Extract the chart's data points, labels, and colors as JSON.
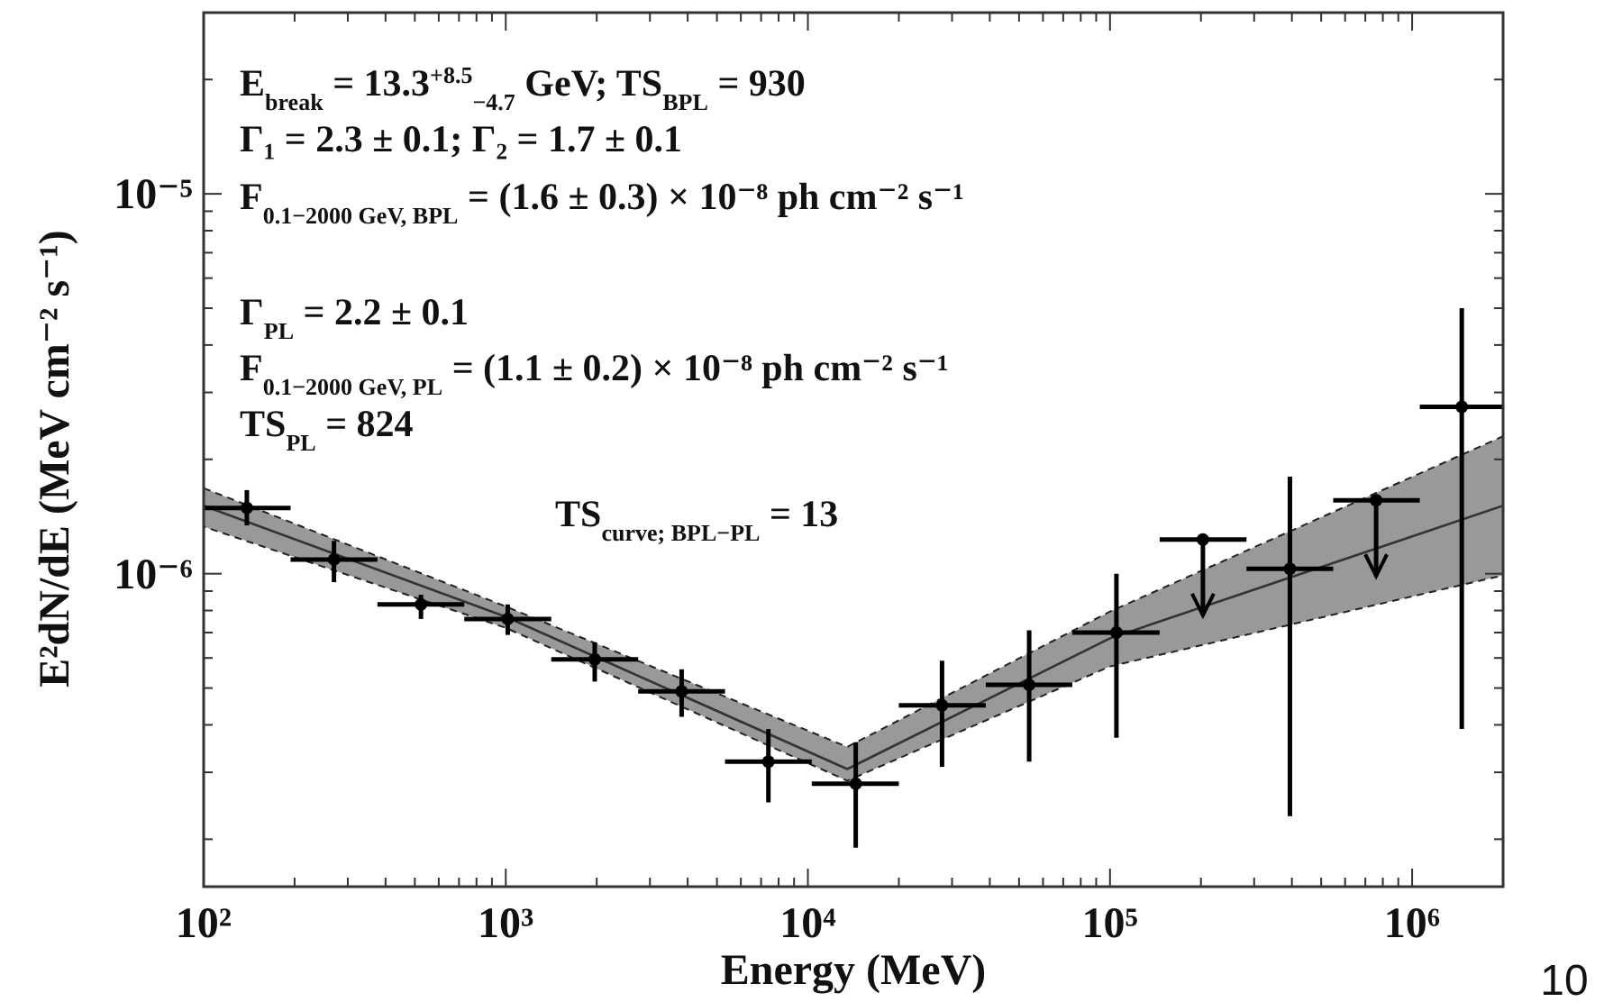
{
  "chart_data": {
    "type": "scatter",
    "xlabel": "Energy (MeV)",
    "ylabel": "E²dN/dE (MeV cm⁻² s⁻¹)",
    "log": "xy",
    "grid": false,
    "xlim": [
      100,
      2000000
    ],
    "ylim": [
      1.5e-07,
      3e-05
    ],
    "xticks": [
      {
        "value": 100,
        "label": "10²"
      },
      {
        "value": 200,
        "label": null
      },
      {
        "value": 300,
        "label": null
      },
      {
        "value": 400,
        "label": null
      },
      {
        "value": 500,
        "label": null
      },
      {
        "value": 600,
        "label": null
      },
      {
        "value": 700,
        "label": null
      },
      {
        "value": 800,
        "label": null
      },
      {
        "value": 900,
        "label": null
      },
      {
        "value": 1000,
        "label": "10³"
      },
      {
        "value": 2000,
        "label": null
      },
      {
        "value": 3000,
        "label": null
      },
      {
        "value": 4000,
        "label": null
      },
      {
        "value": 5000,
        "label": null
      },
      {
        "value": 6000,
        "label": null
      },
      {
        "value": 7000,
        "label": null
      },
      {
        "value": 8000,
        "label": null
      },
      {
        "value": 9000,
        "label": null
      },
      {
        "value": 10000,
        "label": "10⁴"
      },
      {
        "value": 20000,
        "label": null
      },
      {
        "value": 30000,
        "label": null
      },
      {
        "value": 40000,
        "label": null
      },
      {
        "value": 50000,
        "label": null
      },
      {
        "value": 60000,
        "label": null
      },
      {
        "value": 70000,
        "label": null
      },
      {
        "value": 80000,
        "label": null
      },
      {
        "value": 90000,
        "label": null
      },
      {
        "value": 100000,
        "label": "10⁵"
      },
      {
        "value": 200000,
        "label": null
      },
      {
        "value": 300000,
        "label": null
      },
      {
        "value": 400000,
        "label": null
      },
      {
        "value": 500000,
        "label": null
      },
      {
        "value": 600000,
        "label": null
      },
      {
        "value": 700000,
        "label": null
      },
      {
        "value": 800000,
        "label": null
      },
      {
        "value": 900000,
        "label": null
      },
      {
        "value": 1000000,
        "label": "10⁶"
      },
      {
        "value": 2000000,
        "label": null
      }
    ],
    "yticks": [
      {
        "value": 2e-07,
        "label": null
      },
      {
        "value": 3e-07,
        "label": null
      },
      {
        "value": 4e-07,
        "label": null
      },
      {
        "value": 5e-07,
        "label": null
      },
      {
        "value": 6e-07,
        "label": null
      },
      {
        "value": 7e-07,
        "label": null
      },
      {
        "value": 8e-07,
        "label": null
      },
      {
        "value": 9e-07,
        "label": null
      },
      {
        "value": 1e-06,
        "label": "10⁻⁶"
      },
      {
        "value": 2e-06,
        "label": null
      },
      {
        "value": 3e-06,
        "label": null
      },
      {
        "value": 4e-06,
        "label": null
      },
      {
        "value": 5e-06,
        "label": null
      },
      {
        "value": 6e-06,
        "label": null
      },
      {
        "value": 7e-06,
        "label": null
      },
      {
        "value": 8e-06,
        "label": null
      },
      {
        "value": 9e-06,
        "label": null
      },
      {
        "value": 1e-05,
        "label": "10⁻⁵"
      },
      {
        "value": 2e-05,
        "label": null
      },
      {
        "value": 3e-05,
        "label": null
      }
    ],
    "series": [
      {
        "type": "line",
        "color": "#333333",
        "line_style": "solid",
        "x": [
          100,
          1000,
          13500,
          100000,
          2000000
        ],
        "values": [
          1.51e-06,
          7.7e-07,
          3.06e-07,
          6.76e-07,
          1.51e-06
        ],
        "lower": [
          1.33e-06,
          7.2e-07,
          2.85e-07,
          5.7e-07,
          9.9e-07
        ],
        "upper": [
          1.68e-06,
          8.2e-07,
          3.5e-07,
          7.95e-07,
          2.3e-06
        ]
      },
      {
        "color": "#000000",
        "marker": "circle",
        "x": [
          139,
          270,
          524,
          1015,
          1970,
          3820,
          7400,
          14400,
          27800,
          54000,
          105000,
          394000,
          1460000
        ],
        "values": [
          1.49e-06,
          1.09e-06,
          8.3e-07,
          7.6e-07,
          5.95e-07,
          4.9e-07,
          3.2e-07,
          2.8e-07,
          4.5e-07,
          5.1e-07,
          7e-07,
          1.03e-06,
          2.75e-06
        ],
        "errors": [
          [
            1.34e-06,
            1.66e-06
          ],
          [
            9.5e-07,
            1.22e-06
          ],
          [
            7.6e-07,
            8.8e-07
          ],
          [
            6.9e-07,
            8.3e-07
          ],
          [
            5.2e-07,
            6.6e-07
          ],
          [
            4.2e-07,
            5.6e-07
          ],
          [
            2.5e-07,
            3.9e-07
          ],
          [
            1.9e-07,
            3.6e-07
          ],
          [
            3.1e-07,
            5.9e-07
          ],
          [
            3.2e-07,
            7.1e-07
          ],
          [
            3.7e-07,
            1e-06
          ],
          [
            2.3e-07,
            1.8e-06
          ],
          [
            3.9e-07,
            5e-06
          ]
        ],
        "xerrors": [
          [
            100,
            194
          ],
          [
            194,
            376
          ],
          [
            376,
            729
          ],
          [
            729,
            1414
          ],
          [
            1414,
            2743
          ],
          [
            2743,
            5318
          ],
          [
            5318,
            10300
          ],
          [
            10300,
            20000
          ],
          [
            20000,
            38800
          ],
          [
            38800,
            75000
          ],
          [
            75000,
            146000
          ],
          [
            283000,
            548000
          ],
          [
            1060000,
            2000000
          ]
        ]
      },
      {
        "color": "#000000",
        "marker": "circle",
        "x": [
          203000,
          760000
        ],
        "values": [
          1.23e-06,
          1.56e-06
        ],
        "xerrors": [
          [
            146000,
            283000
          ],
          [
            548000,
            1060000
          ]
        ]
      }
    ],
    "annotations": [
      "E$_{break}$ = 13.3$^{+8.5}$$_{−4.7}$ GeV; TS$_{BPL}$ = 930",
      "Γ₁ = 2.3 ± 0.1; Γ₂ = 1.7 ± 0.1",
      "F$_{0.1−2000 GeV, BPL}$ = (1.6 ± 0.3) × 10⁻⁸ ph cm⁻² s⁻¹",
      "Γ$_{PL}$ = 2.2 ± 0.1",
      "F$_{0.1−2000 GeV, PL}$ = (1.1 ± 0.2) × 10⁻⁸ ph cm⁻² s⁻¹",
      "TS$_{PL}$ = 824",
      "TS$_{curve; BPL−PL}$ = 13",
      "10"
    ]
  }
}
